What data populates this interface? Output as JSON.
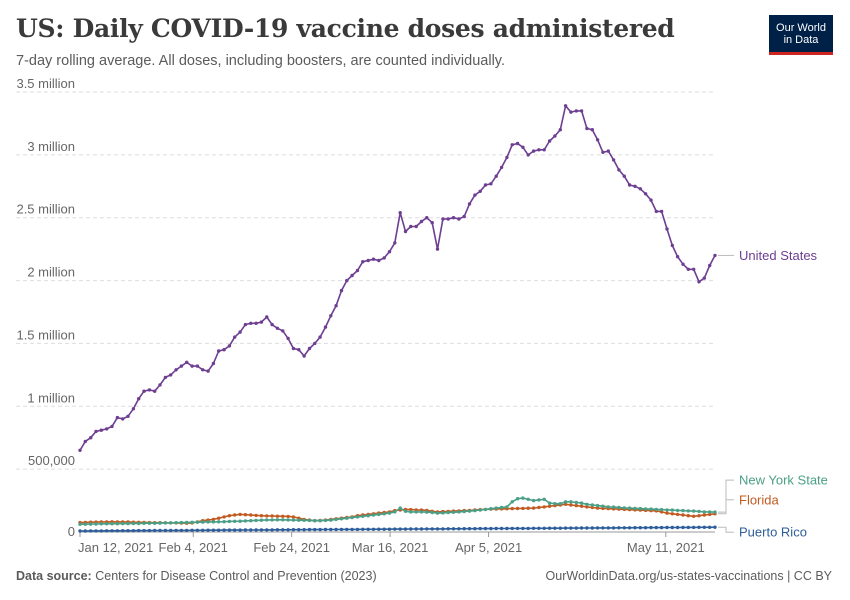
{
  "header": {
    "title": "US: Daily COVID-19 vaccine doses administered",
    "subtitle": "7-day rolling average. All doses, including boosters, are counted individually.",
    "logo_line1": "Our World",
    "logo_line2": "in Data"
  },
  "footer": {
    "source_label": "Data source:",
    "source_text": "Centers for Disease Control and Prevention (2023)",
    "url_license": "OurWorldinData.org/us-states-vaccinations | CC BY"
  },
  "colors": {
    "United States": "#6d3e91",
    "New York State": "#4c9f87",
    "Florida": "#c15b21",
    "Puerto Rico": "#2d5d9b",
    "grid": "#dddddd"
  },
  "chart_data": {
    "type": "line",
    "title": "US: Daily COVID-19 vaccine doses administered",
    "subtitle": "7-day rolling average. All doses, including boosters, are counted individually.",
    "xlabel": "",
    "ylabel": "",
    "x_start": "2021-01-12",
    "x_end": "2021-05-21",
    "ylim": [
      0,
      3500000
    ],
    "y_ticks": [
      0,
      500000,
      1000000,
      1500000,
      2000000,
      2500000,
      3000000,
      3500000
    ],
    "y_tick_labels": [
      "0",
      "500,000",
      "1 million",
      "1.5 million",
      "2 million",
      "2.5 million",
      "3 million",
      "3.5 million"
    ],
    "x_ticks": [
      "2021-01-12",
      "2021-02-04",
      "2021-02-24",
      "2021-03-16",
      "2021-04-05",
      "2021-05-11"
    ],
    "x_tick_labels": [
      "Jan 12, 2021",
      "Feb 4, 2021",
      "Feb 24, 2021",
      "Mar 16, 2021",
      "Apr 5, 2021",
      "May 11, 2021"
    ],
    "grid": "horizontal dashed",
    "legend": "end-of-line labels, right",
    "series": [
      {
        "name": "United States",
        "values": [
          650000,
          720000,
          750000,
          800000,
          810000,
          820000,
          840000,
          910000,
          900000,
          920000,
          980000,
          1060000,
          1120000,
          1130000,
          1120000,
          1170000,
          1230000,
          1250000,
          1290000,
          1320000,
          1350000,
          1320000,
          1320000,
          1290000,
          1280000,
          1340000,
          1440000,
          1450000,
          1480000,
          1550000,
          1590000,
          1650000,
          1660000,
          1660000,
          1670000,
          1710000,
          1650000,
          1620000,
          1600000,
          1540000,
          1460000,
          1450000,
          1400000,
          1460000,
          1500000,
          1550000,
          1630000,
          1720000,
          1800000,
          1920000,
          2000000,
          2040000,
          2080000,
          2150000,
          2160000,
          2170000,
          2160000,
          2180000,
          2230000,
          2300000,
          2540000,
          2390000,
          2430000,
          2430000,
          2470000,
          2500000,
          2460000,
          2250000,
          2490000,
          2490000,
          2500000,
          2490000,
          2510000,
          2610000,
          2680000,
          2710000,
          2760000,
          2770000,
          2830000,
          2900000,
          2980000,
          3080000,
          3090000,
          3060000,
          3000000,
          3030000,
          3040000,
          3040000,
          3110000,
          3150000,
          3200000,
          3390000,
          3340000,
          3350000,
          3350000,
          3210000,
          3200000,
          3120000,
          3020000,
          3030000,
          2960000,
          2880000,
          2830000,
          2760000,
          2750000,
          2730000,
          2690000,
          2640000,
          2550000,
          2550000,
          2410000,
          2280000,
          2190000,
          2130000,
          2090000,
          2090000,
          1990000,
          2020000,
          2120000,
          2200000
        ],
        "end_label": "United States"
      },
      {
        "name": "New York State",
        "values": [
          62000,
          62000,
          63000,
          64000,
          65000,
          65000,
          66000,
          66000,
          67000,
          67000,
          68000,
          68000,
          69000,
          70000,
          70000,
          71000,
          72000,
          73000,
          74000,
          75000,
          76000,
          77000,
          78000,
          79000,
          80000,
          80000,
          81000,
          82000,
          84000,
          85000,
          86000,
          88000,
          90000,
          92000,
          94000,
          96000,
          96000,
          97000,
          97000,
          96000,
          95000,
          94000,
          93000,
          92000,
          91000,
          90000,
          92000,
          95000,
          100000,
          105000,
          110000,
          115000,
          120000,
          125000,
          130000,
          135000,
          140000,
          145000,
          150000,
          160000,
          190000,
          165000,
          160000,
          160000,
          160000,
          158000,
          155000,
          150000,
          152000,
          155000,
          157000,
          160000,
          163000,
          166000,
          170000,
          175000,
          180000,
          185000,
          190000,
          195000,
          200000,
          240000,
          265000,
          270000,
          260000,
          250000,
          255000,
          260000,
          230000,
          225000,
          225000,
          240000,
          240000,
          235000,
          230000,
          220000,
          215000,
          210000,
          205000,
          200000,
          198000,
          195000,
          192000,
          190000,
          188000,
          186000,
          184000,
          182000,
          180000,
          178000,
          176000,
          174000,
          172000,
          170000,
          168000,
          166000,
          164000,
          160000,
          160000,
          158000
        ],
        "end_label": "New York State"
      },
      {
        "name": "Florida",
        "values": [
          75000,
          76000,
          78000,
          79000,
          80000,
          80000,
          81000,
          80000,
          80000,
          80000,
          78000,
          77000,
          76000,
          75000,
          74000,
          74000,
          73000,
          72000,
          72000,
          71000,
          70000,
          72000,
          80000,
          90000,
          95000,
          100000,
          110000,
          120000,
          130000,
          135000,
          140000,
          138000,
          135000,
          132000,
          130000,
          128000,
          127000,
          126000,
          125000,
          124000,
          120000,
          110000,
          100000,
          95000,
          90000,
          92000,
          95000,
          100000,
          105000,
          110000,
          115000,
          120000,
          130000,
          135000,
          140000,
          145000,
          150000,
          155000,
          160000,
          170000,
          175000,
          180000,
          178000,
          176000,
          174000,
          172000,
          165000,
          160000,
          162000,
          164000,
          166000,
          168000,
          170000,
          172000,
          175000,
          178000,
          180000,
          182000,
          183000,
          184000,
          185000,
          186000,
          187000,
          188000,
          189000,
          190000,
          195000,
          200000,
          205000,
          210000,
          215000,
          220000,
          215000,
          210000,
          205000,
          200000,
          195000,
          190000,
          188000,
          186000,
          184000,
          182000,
          180000,
          178000,
          176000,
          174000,
          172000,
          170000,
          168000,
          160000,
          150000,
          145000,
          140000,
          135000,
          130000,
          125000,
          130000,
          135000,
          140000,
          145000
        ],
        "end_label": "Florida"
      },
      {
        "name": "Puerto Rico",
        "values": [
          8000,
          8200,
          8500,
          8700,
          9000,
          9200,
          9500,
          9800,
          10000,
          10300,
          10600,
          10800,
          11000,
          11300,
          11600,
          11800,
          12000,
          12300,
          12600,
          12800,
          13000,
          13300,
          13500,
          13800,
          14000,
          14300,
          14500,
          14800,
          15000,
          15300,
          15500,
          15800,
          16000,
          16300,
          16500,
          16800,
          17000,
          17300,
          17500,
          17800,
          18000,
          18300,
          18500,
          18800,
          19000,
          19300,
          19500,
          19800,
          20000,
          20300,
          20500,
          20800,
          21000,
          21300,
          21500,
          21800,
          22000,
          22300,
          22500,
          22800,
          23000,
          23300,
          23500,
          23800,
          24000,
          24300,
          24500,
          24800,
          25000,
          25300,
          25500,
          25800,
          26000,
          26300,
          26500,
          26800,
          27000,
          27300,
          27500,
          27800,
          28000,
          28300,
          28500,
          28800,
          29000,
          29300,
          29500,
          29800,
          30000,
          30300,
          30500,
          30800,
          31000,
          31300,
          31500,
          31800,
          32000,
          32300,
          32500,
          32800,
          33000,
          33300,
          33500,
          33800,
          34000,
          34300,
          34500,
          34800,
          35000,
          35300,
          35500,
          35800,
          36000,
          36300,
          36500,
          36800,
          37000,
          37300,
          37500,
          37800
        ],
        "end_label": "Puerto Rico"
      }
    ]
  }
}
